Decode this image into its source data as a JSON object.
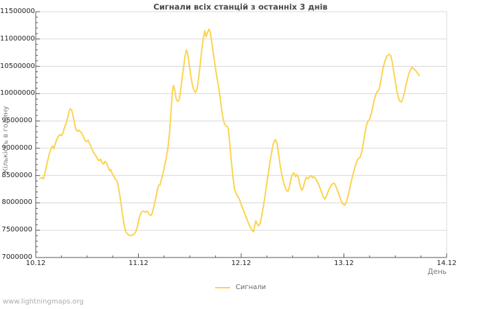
{
  "page": {
    "watermark": "www.lightningmaps.org"
  },
  "colors": {
    "line": "#FBD34D",
    "grid": "#D8D8D8",
    "axis": "#555555",
    "title_text": "#4A4A4A",
    "tick_text": "#1F1F1F",
    "axis_title_text": "#7A7A7A",
    "legend_text": "#666666",
    "watermark_text": "#ABABAB"
  },
  "chart_data": {
    "type": "line",
    "title": "Сигнали всіх станцій з останніх 3 днів",
    "xlabel": "День",
    "ylabel": "Кількість в годину",
    "grid": "horizontal",
    "legend_position": "bottom-center",
    "legend": [
      {
        "name": "Сигнали",
        "color": "#FBD34D"
      }
    ],
    "x_tick_labels": [
      "10.12",
      "11.12",
      "12.12",
      "13.12",
      "14.12"
    ],
    "x_ticks_days": [
      0,
      1,
      2,
      3,
      4
    ],
    "x_minor_step_days": 0.25,
    "xlim_days": [
      0,
      4
    ],
    "y_tick_labels": [
      "7000000",
      "7500000",
      "8000000",
      "8500000",
      "9000000",
      "9500000",
      "10000000",
      "10500000",
      "11000000",
      "11500000"
    ],
    "y_ticks": [
      7000000,
      7500000,
      8000000,
      8500000,
      9000000,
      9500000,
      10000000,
      10500000,
      11000000,
      11500000
    ],
    "y_minor_step": 100000,
    "ylim": [
      7000000,
      11500000
    ],
    "series": [
      {
        "name": "Сигнали",
        "color": "#FBD34D",
        "points": [
          [
            0.04,
            8450000
          ],
          [
            0.06,
            8460000
          ],
          [
            0.075,
            8440000
          ],
          [
            0.09,
            8550000
          ],
          [
            0.105,
            8680000
          ],
          [
            0.12,
            8800000
          ],
          [
            0.135,
            8920000
          ],
          [
            0.15,
            9000000
          ],
          [
            0.165,
            9040000
          ],
          [
            0.175,
            8990000
          ],
          [
            0.19,
            9080000
          ],
          [
            0.205,
            9160000
          ],
          [
            0.22,
            9220000
          ],
          [
            0.235,
            9250000
          ],
          [
            0.25,
            9230000
          ],
          [
            0.265,
            9280000
          ],
          [
            0.28,
            9380000
          ],
          [
            0.295,
            9450000
          ],
          [
            0.31,
            9550000
          ],
          [
            0.325,
            9680000
          ],
          [
            0.335,
            9720000
          ],
          [
            0.35,
            9700000
          ],
          [
            0.365,
            9580000
          ],
          [
            0.38,
            9440000
          ],
          [
            0.39,
            9350000
          ],
          [
            0.405,
            9310000
          ],
          [
            0.42,
            9330000
          ],
          [
            0.435,
            9300000
          ],
          [
            0.45,
            9270000
          ],
          [
            0.465,
            9210000
          ],
          [
            0.48,
            9140000
          ],
          [
            0.495,
            9120000
          ],
          [
            0.51,
            9150000
          ],
          [
            0.525,
            9080000
          ],
          [
            0.54,
            9020000
          ],
          [
            0.555,
            8950000
          ],
          [
            0.57,
            8900000
          ],
          [
            0.585,
            8860000
          ],
          [
            0.6,
            8810000
          ],
          [
            0.615,
            8770000
          ],
          [
            0.63,
            8800000
          ],
          [
            0.645,
            8740000
          ],
          [
            0.66,
            8710000
          ],
          [
            0.675,
            8760000
          ],
          [
            0.69,
            8730000
          ],
          [
            0.705,
            8650000
          ],
          [
            0.72,
            8590000
          ],
          [
            0.73,
            8610000
          ],
          [
            0.745,
            8530000
          ],
          [
            0.76,
            8490000
          ],
          [
            0.775,
            8440000
          ],
          [
            0.79,
            8400000
          ],
          [
            0.805,
            8300000
          ],
          [
            0.82,
            8120000
          ],
          [
            0.835,
            7920000
          ],
          [
            0.85,
            7720000
          ],
          [
            0.865,
            7550000
          ],
          [
            0.88,
            7460000
          ],
          [
            0.9,
            7420000
          ],
          [
            0.92,
            7400000
          ],
          [
            0.94,
            7410000
          ],
          [
            0.96,
            7430000
          ],
          [
            0.975,
            7480000
          ],
          [
            0.99,
            7570000
          ],
          [
            1.005,
            7700000
          ],
          [
            1.02,
            7800000
          ],
          [
            1.035,
            7840000
          ],
          [
            1.05,
            7850000
          ],
          [
            1.065,
            7830000
          ],
          [
            1.08,
            7850000
          ],
          [
            1.095,
            7820000
          ],
          [
            1.11,
            7780000
          ],
          [
            1.125,
            7770000
          ],
          [
            1.14,
            7850000
          ],
          [
            1.155,
            7970000
          ],
          [
            1.17,
            8100000
          ],
          [
            1.185,
            8250000
          ],
          [
            1.195,
            8320000
          ],
          [
            1.21,
            8330000
          ],
          [
            1.225,
            8440000
          ],
          [
            1.24,
            8550000
          ],
          [
            1.255,
            8680000
          ],
          [
            1.27,
            8820000
          ],
          [
            1.285,
            8980000
          ],
          [
            1.3,
            9220000
          ],
          [
            1.315,
            9620000
          ],
          [
            1.33,
            10020000
          ],
          [
            1.34,
            10150000
          ],
          [
            1.352,
            10080000
          ],
          [
            1.365,
            9920000
          ],
          [
            1.38,
            9860000
          ],
          [
            1.395,
            9880000
          ],
          [
            1.41,
            10050000
          ],
          [
            1.425,
            10280000
          ],
          [
            1.44,
            10500000
          ],
          [
            1.455,
            10700000
          ],
          [
            1.467,
            10800000
          ],
          [
            1.48,
            10720000
          ],
          [
            1.495,
            10520000
          ],
          [
            1.51,
            10320000
          ],
          [
            1.525,
            10160000
          ],
          [
            1.54,
            10060000
          ],
          [
            1.555,
            10020000
          ],
          [
            1.57,
            10080000
          ],
          [
            1.585,
            10280000
          ],
          [
            1.6,
            10520000
          ],
          [
            1.615,
            10780000
          ],
          [
            1.63,
            11000000
          ],
          [
            1.645,
            11150000
          ],
          [
            1.658,
            11040000
          ],
          [
            1.672,
            11120000
          ],
          [
            1.686,
            11180000
          ],
          [
            1.7,
            11120000
          ],
          [
            1.715,
            10920000
          ],
          [
            1.73,
            10720000
          ],
          [
            1.745,
            10520000
          ],
          [
            1.76,
            10340000
          ],
          [
            1.775,
            10180000
          ],
          [
            1.79,
            10000000
          ],
          [
            1.805,
            9780000
          ],
          [
            1.82,
            9580000
          ],
          [
            1.835,
            9460000
          ],
          [
            1.85,
            9410000
          ],
          [
            1.865,
            9400000
          ],
          [
            1.875,
            9350000
          ],
          [
            1.89,
            9050000
          ],
          [
            1.905,
            8750000
          ],
          [
            1.92,
            8480000
          ],
          [
            1.935,
            8250000
          ],
          [
            1.95,
            8180000
          ],
          [
            1.965,
            8120000
          ],
          [
            1.98,
            8080000
          ],
          [
            2.0,
            7970000
          ],
          [
            2.015,
            7900000
          ],
          [
            2.03,
            7830000
          ],
          [
            2.045,
            7750000
          ],
          [
            2.06,
            7680000
          ],
          [
            2.075,
            7610000
          ],
          [
            2.09,
            7550000
          ],
          [
            2.105,
            7500000
          ],
          [
            2.12,
            7470000
          ],
          [
            2.132,
            7580000
          ],
          [
            2.142,
            7670000
          ],
          [
            2.155,
            7620000
          ],
          [
            2.17,
            7580000
          ],
          [
            2.185,
            7630000
          ],
          [
            2.2,
            7760000
          ],
          [
            2.215,
            7920000
          ],
          [
            2.23,
            8100000
          ],
          [
            2.245,
            8300000
          ],
          [
            2.26,
            8500000
          ],
          [
            2.275,
            8680000
          ],
          [
            2.29,
            8860000
          ],
          [
            2.305,
            9020000
          ],
          [
            2.32,
            9120000
          ],
          [
            2.333,
            9160000
          ],
          [
            2.35,
            9080000
          ],
          [
            2.365,
            8880000
          ],
          [
            2.38,
            8680000
          ],
          [
            2.395,
            8520000
          ],
          [
            2.41,
            8400000
          ],
          [
            2.425,
            8300000
          ],
          [
            2.44,
            8230000
          ],
          [
            2.455,
            8210000
          ],
          [
            2.47,
            8300000
          ],
          [
            2.485,
            8440000
          ],
          [
            2.5,
            8530000
          ],
          [
            2.515,
            8550000
          ],
          [
            2.53,
            8480000
          ],
          [
            2.545,
            8520000
          ],
          [
            2.56,
            8440000
          ],
          [
            2.575,
            8300000
          ],
          [
            2.59,
            8230000
          ],
          [
            2.605,
            8280000
          ],
          [
            2.62,
            8400000
          ],
          [
            2.635,
            8470000
          ],
          [
            2.65,
            8440000
          ],
          [
            2.665,
            8480000
          ],
          [
            2.68,
            8500000
          ],
          [
            2.695,
            8460000
          ],
          [
            2.71,
            8480000
          ],
          [
            2.725,
            8440000
          ],
          [
            2.74,
            8390000
          ],
          [
            2.755,
            8330000
          ],
          [
            2.77,
            8260000
          ],
          [
            2.785,
            8180000
          ],
          [
            2.8,
            8110000
          ],
          [
            2.815,
            8070000
          ],
          [
            2.83,
            8120000
          ],
          [
            2.845,
            8200000
          ],
          [
            2.86,
            8270000
          ],
          [
            2.875,
            8320000
          ],
          [
            2.89,
            8350000
          ],
          [
            2.905,
            8360000
          ],
          [
            2.92,
            8310000
          ],
          [
            2.935,
            8240000
          ],
          [
            2.95,
            8160000
          ],
          [
            2.965,
            8080000
          ],
          [
            2.98,
            8010000
          ],
          [
            2.995,
            7970000
          ],
          [
            3.01,
            7960000
          ],
          [
            3.025,
            8020000
          ],
          [
            3.04,
            8120000
          ],
          [
            3.055,
            8250000
          ],
          [
            3.07,
            8380000
          ],
          [
            3.085,
            8500000
          ],
          [
            3.1,
            8600000
          ],
          [
            3.115,
            8700000
          ],
          [
            3.13,
            8780000
          ],
          [
            3.145,
            8820000
          ],
          [
            3.16,
            8840000
          ],
          [
            3.175,
            8950000
          ],
          [
            3.19,
            9100000
          ],
          [
            3.205,
            9280000
          ],
          [
            3.22,
            9420000
          ],
          [
            3.235,
            9500000
          ],
          [
            3.25,
            9530000
          ],
          [
            3.265,
            9620000
          ],
          [
            3.28,
            9750000
          ],
          [
            3.295,
            9880000
          ],
          [
            3.31,
            9980000
          ],
          [
            3.325,
            10040000
          ],
          [
            3.34,
            10060000
          ],
          [
            3.355,
            10180000
          ],
          [
            3.37,
            10350000
          ],
          [
            3.385,
            10500000
          ],
          [
            3.4,
            10600000
          ],
          [
            3.42,
            10690000
          ],
          [
            3.44,
            10720000
          ],
          [
            3.455,
            10700000
          ],
          [
            3.47,
            10580000
          ],
          [
            3.485,
            10400000
          ],
          [
            3.5,
            10220000
          ],
          [
            3.515,
            10050000
          ],
          [
            3.53,
            9930000
          ],
          [
            3.545,
            9860000
          ],
          [
            3.56,
            9850000
          ],
          [
            3.575,
            9920000
          ],
          [
            3.59,
            10030000
          ],
          [
            3.605,
            10160000
          ],
          [
            3.62,
            10280000
          ],
          [
            3.635,
            10380000
          ],
          [
            3.65,
            10450000
          ],
          [
            3.665,
            10480000
          ],
          [
            3.68,
            10450000
          ],
          [
            3.7,
            10420000
          ],
          [
            3.715,
            10380000
          ],
          [
            3.733,
            10330000
          ]
        ]
      }
    ]
  }
}
